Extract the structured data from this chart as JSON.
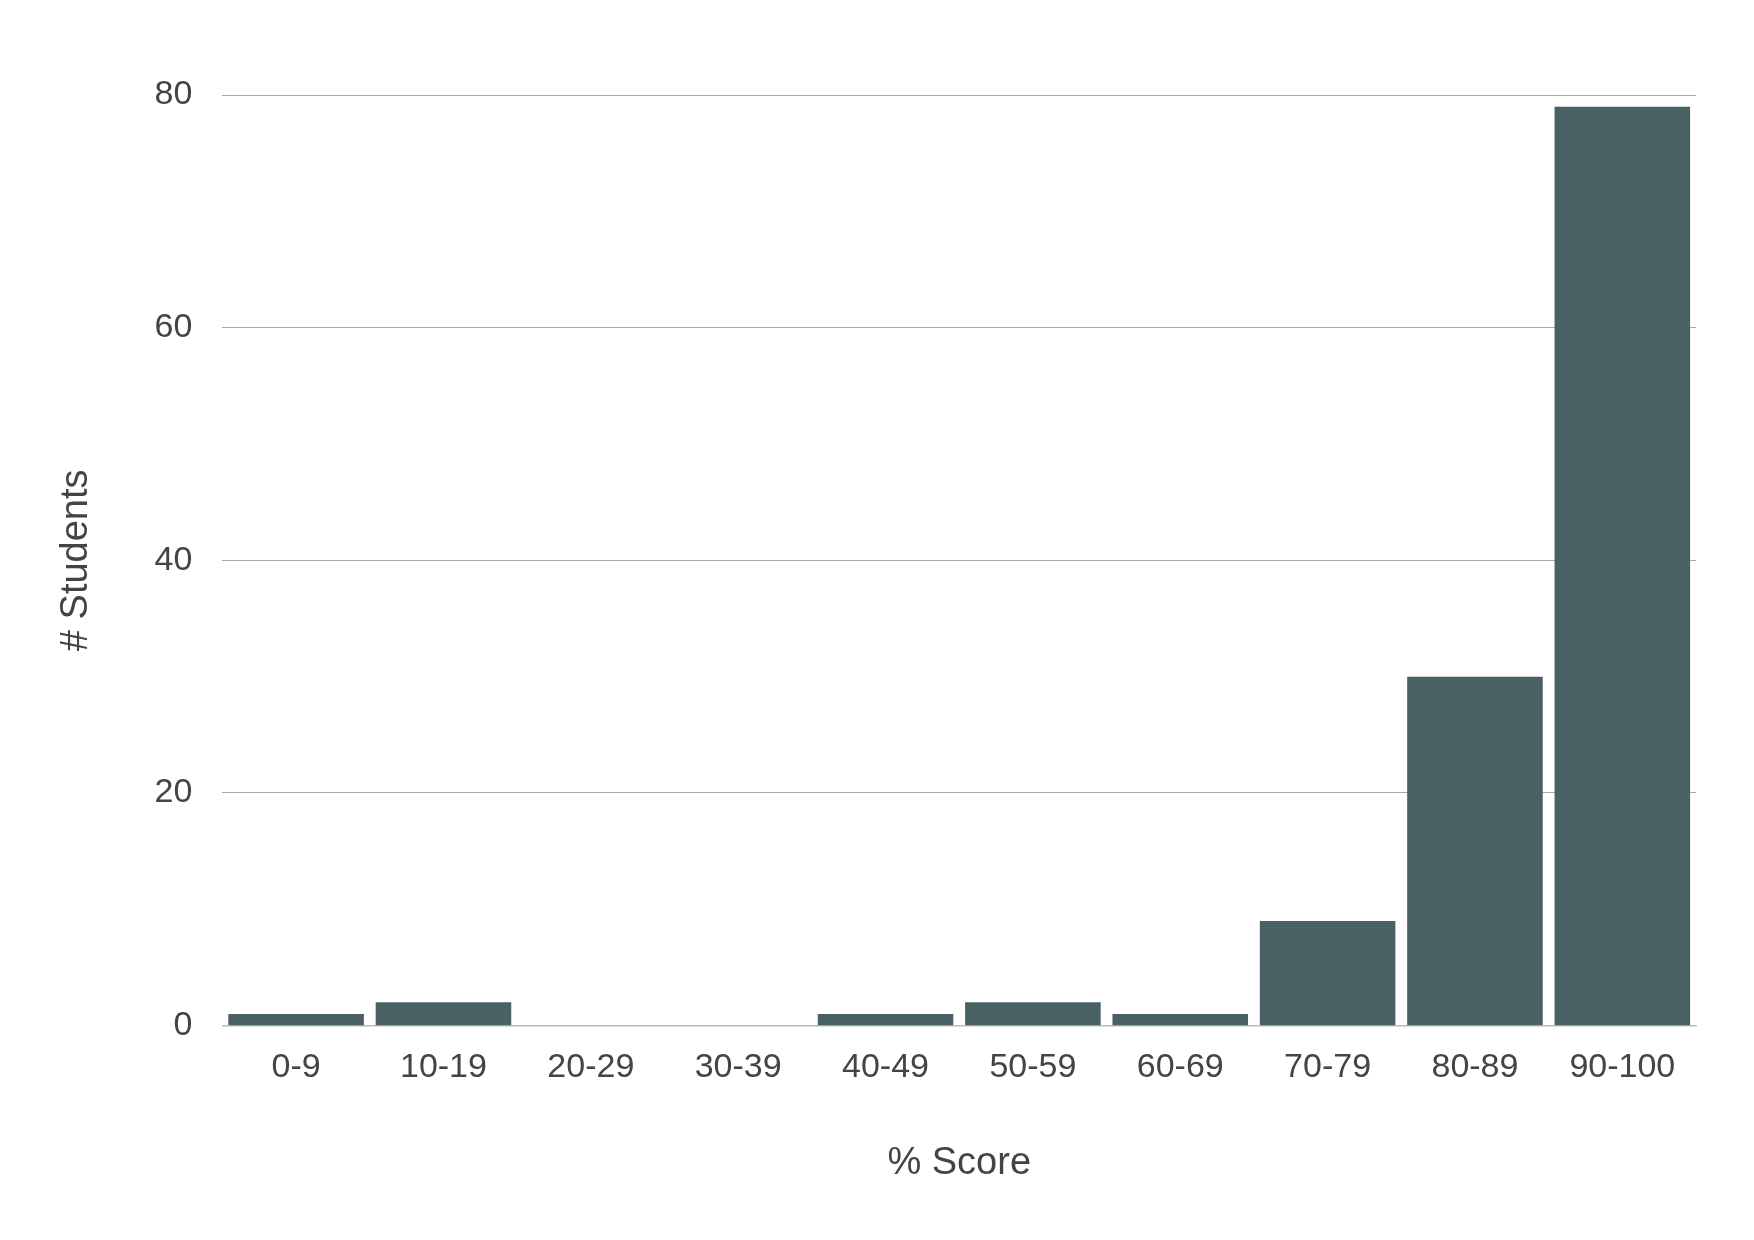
{
  "chart_data": {
    "type": "bar",
    "categories": [
      "0-9",
      "10-19",
      "20-29",
      "30-39",
      "40-49",
      "50-59",
      "60-69",
      "70-79",
      "80-89",
      "90-100"
    ],
    "values": [
      1,
      2,
      0,
      0,
      1,
      2,
      1,
      9,
      30,
      79
    ],
    "color": "#4a6163",
    "xlabel": "% Score",
    "ylabel": "# Students",
    "ylim": [
      0,
      80
    ],
    "yticks": [
      0,
      20,
      40,
      60,
      80
    ],
    "grid": "y"
  }
}
